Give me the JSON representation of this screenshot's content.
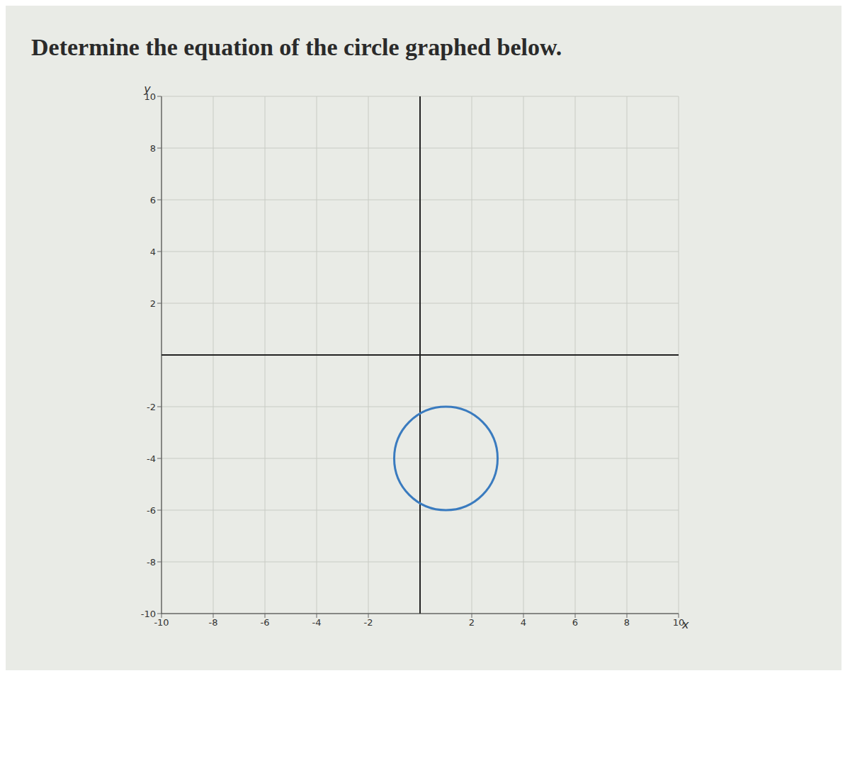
{
  "chart_data": {
    "type": "circle",
    "title": "Determine the equation of the circle graphed below.",
    "center": [
      1,
      -4
    ],
    "radius": 2,
    "color": "#3a7bbf",
    "xlim": [
      -10,
      10
    ],
    "ylim": [
      -10,
      10
    ],
    "xticks": [
      -10,
      -8,
      -6,
      -4,
      -2,
      2,
      4,
      6,
      8,
      10
    ],
    "yticks": [
      -10,
      -8,
      -6,
      -4,
      -2,
      2,
      4,
      6,
      8,
      10
    ],
    "x_label": "x",
    "y_label": "y",
    "grid": true
  }
}
